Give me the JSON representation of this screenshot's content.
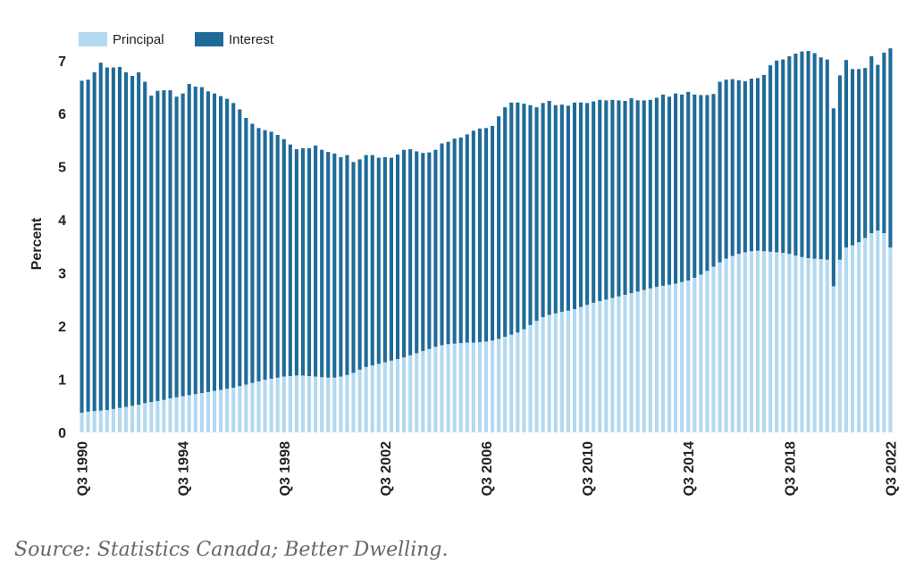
{
  "chart_data": {
    "type": "bar",
    "stacked": true,
    "ylabel": "Percent",
    "ylim": [
      0,
      7.4
    ],
    "y_ticks": [
      0,
      1,
      2,
      3,
      4,
      5,
      6,
      7
    ],
    "legend_position": "top-left",
    "grid": false,
    "x_tick_labels": [
      "Q3 1990",
      "Q3 1994",
      "Q3 1998",
      "Q3 2002",
      "Q3 2006",
      "Q3 2010",
      "Q3 2014",
      "Q3 2018",
      "Q3 2022"
    ],
    "x_tick_every": 16,
    "categories": [
      "Q3 1990",
      "Q4 1990",
      "Q1 1991",
      "Q2 1991",
      "Q3 1991",
      "Q4 1991",
      "Q1 1992",
      "Q2 1992",
      "Q3 1992",
      "Q4 1992",
      "Q1 1993",
      "Q2 1993",
      "Q3 1993",
      "Q4 1993",
      "Q1 1994",
      "Q2 1994",
      "Q3 1994",
      "Q4 1994",
      "Q1 1995",
      "Q2 1995",
      "Q3 1995",
      "Q4 1995",
      "Q1 1996",
      "Q2 1996",
      "Q3 1996",
      "Q4 1996",
      "Q1 1997",
      "Q2 1997",
      "Q3 1997",
      "Q4 1997",
      "Q1 1998",
      "Q2 1998",
      "Q3 1998",
      "Q4 1998",
      "Q1 1999",
      "Q2 1999",
      "Q3 1999",
      "Q4 1999",
      "Q1 2000",
      "Q2 2000",
      "Q3 2000",
      "Q4 2000",
      "Q1 2001",
      "Q2 2001",
      "Q3 2001",
      "Q4 2001",
      "Q1 2002",
      "Q2 2002",
      "Q3 2002",
      "Q4 2002",
      "Q1 2003",
      "Q2 2003",
      "Q3 2003",
      "Q4 2003",
      "Q1 2004",
      "Q2 2004",
      "Q3 2004",
      "Q4 2004",
      "Q1 2005",
      "Q2 2005",
      "Q3 2005",
      "Q4 2005",
      "Q1 2006",
      "Q2 2006",
      "Q3 2006",
      "Q4 2006",
      "Q1 2007",
      "Q2 2007",
      "Q3 2007",
      "Q4 2007",
      "Q1 2008",
      "Q2 2008",
      "Q3 2008",
      "Q4 2008",
      "Q1 2009",
      "Q2 2009",
      "Q3 2009",
      "Q4 2009",
      "Q1 2010",
      "Q2 2010",
      "Q3 2010",
      "Q4 2010",
      "Q1 2011",
      "Q2 2011",
      "Q3 2011",
      "Q4 2011",
      "Q1 2012",
      "Q2 2012",
      "Q3 2012",
      "Q4 2012",
      "Q1 2013",
      "Q2 2013",
      "Q3 2013",
      "Q4 2013",
      "Q1 2014",
      "Q2 2014",
      "Q3 2014",
      "Q4 2014",
      "Q1 2015",
      "Q2 2015",
      "Q3 2015",
      "Q4 2015",
      "Q1 2016",
      "Q2 2016",
      "Q3 2016",
      "Q4 2016",
      "Q1 2017",
      "Q2 2017",
      "Q3 2017",
      "Q4 2017",
      "Q1 2018",
      "Q2 2018",
      "Q3 2018",
      "Q4 2018",
      "Q1 2019",
      "Q2 2019",
      "Q3 2019",
      "Q4 2019",
      "Q1 2020",
      "Q2 2020",
      "Q3 2020",
      "Q4 2020",
      "Q1 2021",
      "Q2 2021",
      "Q3 2021",
      "Q4 2021",
      "Q1 2022",
      "Q2 2022",
      "Q3 2022"
    ],
    "series": [
      {
        "name": "Principal",
        "color": "#b3d9f0",
        "values": [
          0.37,
          0.39,
          0.4,
          0.41,
          0.42,
          0.44,
          0.46,
          0.48,
          0.5,
          0.52,
          0.55,
          0.57,
          0.59,
          0.61,
          0.64,
          0.66,
          0.68,
          0.7,
          0.72,
          0.74,
          0.76,
          0.78,
          0.8,
          0.82,
          0.84,
          0.87,
          0.9,
          0.93,
          0.96,
          0.99,
          1.01,
          1.03,
          1.05,
          1.06,
          1.07,
          1.07,
          1.06,
          1.05,
          1.04,
          1.03,
          1.03,
          1.05,
          1.08,
          1.12,
          1.18,
          1.23,
          1.26,
          1.29,
          1.32,
          1.35,
          1.38,
          1.41,
          1.45,
          1.49,
          1.53,
          1.57,
          1.61,
          1.64,
          1.66,
          1.67,
          1.68,
          1.69,
          1.69,
          1.7,
          1.71,
          1.73,
          1.76,
          1.8,
          1.84,
          1.88,
          1.94,
          2.02,
          2.1,
          2.17,
          2.21,
          2.24,
          2.27,
          2.29,
          2.32,
          2.36,
          2.4,
          2.44,
          2.47,
          2.5,
          2.53,
          2.56,
          2.59,
          2.62,
          2.65,
          2.68,
          2.71,
          2.74,
          2.76,
          2.78,
          2.8,
          2.83,
          2.86,
          2.91,
          2.97,
          3.04,
          3.12,
          3.2,
          3.27,
          3.32,
          3.36,
          3.39,
          3.41,
          3.42,
          3.41,
          3.4,
          3.39,
          3.38,
          3.36,
          3.33,
          3.3,
          3.28,
          3.27,
          3.26,
          3.25,
          2.75,
          3.25,
          3.48,
          3.52,
          3.58,
          3.66,
          3.75,
          3.8,
          3.75,
          3.48
        ]
      },
      {
        "name": "Interest",
        "color": "#1f6b98",
        "values": [
          6.25,
          6.25,
          6.38,
          6.55,
          6.45,
          6.43,
          6.42,
          6.3,
          6.21,
          6.26,
          6.05,
          5.77,
          5.84,
          5.83,
          5.8,
          5.66,
          5.7,
          5.86,
          5.79,
          5.76,
          5.66,
          5.6,
          5.53,
          5.46,
          5.36,
          5.21,
          5.02,
          4.88,
          4.77,
          4.7,
          4.65,
          4.57,
          4.47,
          4.36,
          4.26,
          4.28,
          4.29,
          4.35,
          4.28,
          4.25,
          4.22,
          4.13,
          4.14,
          3.97,
          3.96,
          3.99,
          3.96,
          3.88,
          3.86,
          3.82,
          3.85,
          3.91,
          3.88,
          3.8,
          3.73,
          3.7,
          3.71,
          3.8,
          3.81,
          3.86,
          3.87,
          3.92,
          3.99,
          4.02,
          4.02,
          4.04,
          4.19,
          4.32,
          4.37,
          4.33,
          4.25,
          4.14,
          4.02,
          4.03,
          4.03,
          3.92,
          3.9,
          3.86,
          3.89,
          3.85,
          3.8,
          3.79,
          3.79,
          3.75,
          3.73,
          3.69,
          3.65,
          3.67,
          3.6,
          3.57,
          3.55,
          3.56,
          3.6,
          3.54,
          3.58,
          3.53,
          3.55,
          3.45,
          3.38,
          3.31,
          3.25,
          3.4,
          3.37,
          3.33,
          3.27,
          3.22,
          3.25,
          3.25,
          3.32,
          3.51,
          3.61,
          3.64,
          3.72,
          3.8,
          3.87,
          3.9,
          3.87,
          3.8,
          3.77,
          3.35,
          3.47,
          3.53,
          3.32,
          3.26,
          3.2,
          3.33,
          3.12,
          3.4,
          3.75
        ]
      }
    ]
  },
  "source": "Source: Statistics Canada; Better Dwelling."
}
